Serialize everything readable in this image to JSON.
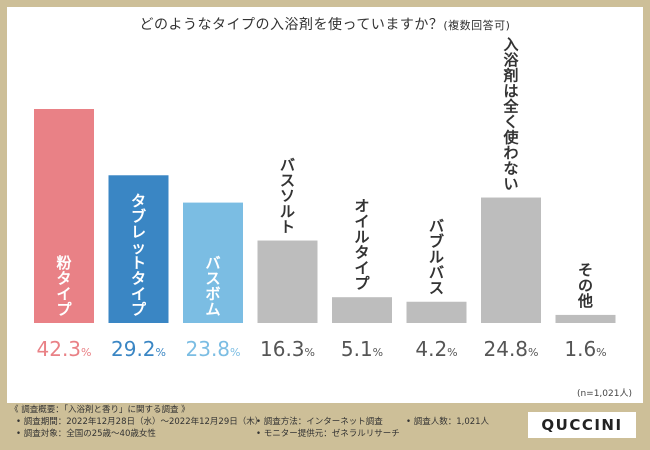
{
  "title": {
    "main": "どのようなタイプの入浴剤を使っていますか？",
    "note": "(複数回答可)"
  },
  "chart_data": {
    "type": "bar",
    "title": "どのようなタイプの入浴剤を使っていますか？(複数回答可)",
    "categories": [
      "粉タイプ",
      "タブレットタイプ",
      "バスボム",
      "バスソルト",
      "オイルタイプ",
      "バブルバス",
      "入浴剤は全く使わない",
      "その他"
    ],
    "values": [
      42.3,
      29.2,
      23.8,
      16.3,
      5.1,
      4.2,
      24.8,
      1.6
    ],
    "value_labels": [
      "42.3",
      "29.2",
      "23.8",
      "16.3",
      "5.1",
      "4.2",
      "24.8",
      "1.6"
    ],
    "unit": "%",
    "ylim": [
      0,
      42.3
    ],
    "grid": false,
    "xlabel": "",
    "ylabel": "",
    "colors": [
      "#e98186",
      "#3a86c4",
      "#7bbde3",
      "#bdbdbd",
      "#bdbdbd",
      "#bdbdbd",
      "#bdbdbd",
      "#bdbdbd"
    ],
    "label_colors": [
      "#e98186",
      "#3a86c4",
      "#7bbde3",
      "#555555",
      "#555555",
      "#555555",
      "#555555",
      "#555555"
    ],
    "sample_size": "(n=1,021人)"
  },
  "footer": {
    "heading": "《 調査概要：「入浴剤と香り」に関する調査 》",
    "period": "• 調査期間：2022年12月28日（水）～2022年12月29日（木）",
    "method": "• 調査方法：インターネット調査",
    "count": "• 調査人数：1,021人",
    "target": "• 調査対象：全国の25歳～40歳女性",
    "provider": "• モニター提供元：ゼネラルリサーチ"
  },
  "brand": "QUCCINI"
}
